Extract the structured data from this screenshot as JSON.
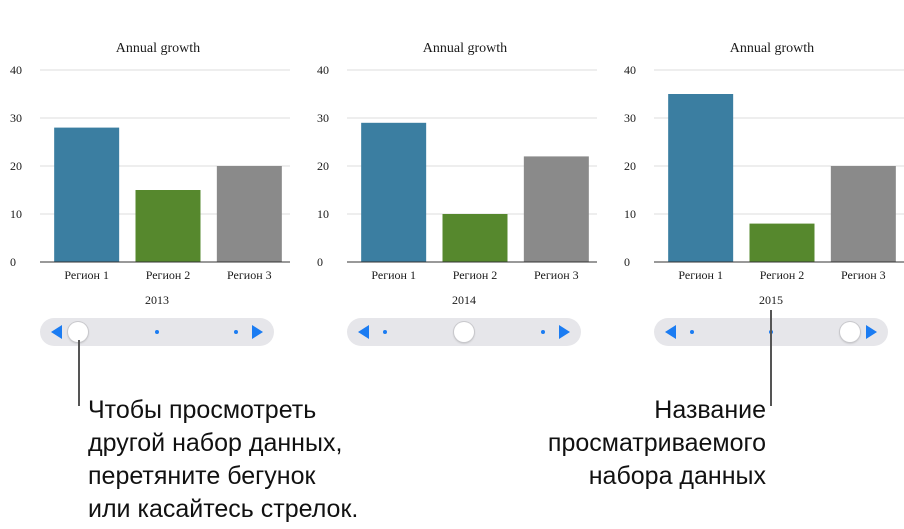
{
  "colors": {
    "region1": "#3b7ea1",
    "region2": "#56882d",
    "region3": "#8a8a8a",
    "slider_accent": "#1b7cf2",
    "slider_track": "#e6e6ea",
    "gridline": "#dddddd"
  },
  "chart_data": [
    {
      "type": "bar",
      "title": "Annual growth",
      "categories": [
        "Регион 1",
        "Регион 2",
        "Регион 3"
      ],
      "values": [
        28,
        15,
        20
      ],
      "xlabel": "2013",
      "ylim": [
        0,
        40
      ],
      "yticks": [
        0,
        10,
        20,
        30,
        40
      ],
      "grid": true
    },
    {
      "type": "bar",
      "title": "Annual growth",
      "categories": [
        "Регион 1",
        "Регион 2",
        "Регион 3"
      ],
      "values": [
        29,
        10,
        22
      ],
      "xlabel": "2014",
      "ylim": [
        0,
        40
      ],
      "yticks": [
        0,
        10,
        20,
        30,
        40
      ],
      "grid": true
    },
    {
      "type": "bar",
      "title": "Annual growth",
      "categories": [
        "Регион 1",
        "Регион 2",
        "Регион 3"
      ],
      "values": [
        35,
        8,
        20
      ],
      "xlabel": "2015",
      "ylim": [
        0,
        40
      ],
      "yticks": [
        0,
        10,
        20,
        30,
        40
      ],
      "grid": true
    }
  ],
  "sliders": [
    {
      "position_index": 0,
      "count": 3
    },
    {
      "position_index": 1,
      "count": 3
    },
    {
      "position_index": 2,
      "count": 3
    }
  ],
  "callouts": {
    "left": "Чтобы просмотреть\nдругой набор данных,\nперетяните бегунок\nили касайтесь стрелок.",
    "right": "Название\nпросматриваемого\nнабора данных"
  }
}
